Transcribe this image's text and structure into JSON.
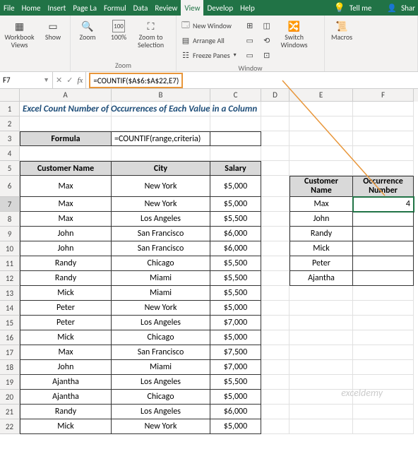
{
  "tabs": {
    "list": [
      "File",
      "Home",
      "Insert",
      "Page La",
      "Formul",
      "Data",
      "Review",
      "View",
      "Develop",
      "Help"
    ],
    "active": "View",
    "tell_me": "Tell me",
    "share": "Shar"
  },
  "ribbon": {
    "g1": {
      "views": "Workbook\nViews",
      "show": "Show"
    },
    "zoom": {
      "zoom": "Zoom",
      "hundred": "100%",
      "sel": "Zoom to\nSelection",
      "label": "Zoom"
    },
    "window": {
      "neww": "New Window",
      "arr": "Arrange All",
      "freeze": "Freeze Panes",
      "switch": "Switch\nWindows",
      "label": "Window"
    },
    "macros": {
      "macros": "Macros"
    }
  },
  "namebox": "F7",
  "formula": "=COUNTIF($A$6:$A$22,E7)",
  "cols": [
    "A",
    "B",
    "C",
    "D",
    "E",
    "F"
  ],
  "title": "Excel Count Number of Occurrences of Each Value in a Column",
  "formula_label": "Formula",
  "formula_example": "=COUNTIF(range,criteria)",
  "main_header": {
    "name": "Customer Name",
    "city": "City",
    "salary": "Salary"
  },
  "side_header": {
    "name": "Customer\nName",
    "occ": "Occurrence\nNumber"
  },
  "side_rows": [
    {
      "name": "Max",
      "occ": "4"
    },
    {
      "name": "John",
      "occ": ""
    },
    {
      "name": "Randy",
      "occ": ""
    },
    {
      "name": "Mick",
      "occ": ""
    },
    {
      "name": "Peter",
      "occ": ""
    },
    {
      "name": "Ajantha",
      "occ": ""
    }
  ],
  "main_rows": [
    {
      "r": 6,
      "name": "Max",
      "city": "New York",
      "salary": "$5,000"
    },
    {
      "r": 7,
      "name": "Max",
      "city": "New York",
      "salary": "$5,000"
    },
    {
      "r": 8,
      "name": "Max",
      "city": "Los Angeles",
      "salary": "$5,500"
    },
    {
      "r": 9,
      "name": "John",
      "city": "San Francisco",
      "salary": "$6,000"
    },
    {
      "r": 10,
      "name": "John",
      "city": "San Francisco",
      "salary": "$6,000"
    },
    {
      "r": 11,
      "name": "Randy",
      "city": "Chicago",
      "salary": "$5,500"
    },
    {
      "r": 12,
      "name": "Randy",
      "city": "Miami",
      "salary": "$5,500"
    },
    {
      "r": 13,
      "name": "Mick",
      "city": "Miami",
      "salary": "$5,500"
    },
    {
      "r": 14,
      "name": "Peter",
      "city": "New York",
      "salary": "$5,000"
    },
    {
      "r": 15,
      "name": "Peter",
      "city": "Los Angeles",
      "salary": "$7,000"
    },
    {
      "r": 16,
      "name": "Mick",
      "city": "Chicago",
      "salary": "$5,000"
    },
    {
      "r": 17,
      "name": "Max",
      "city": "San Francisco",
      "salary": "$7,500"
    },
    {
      "r": 18,
      "name": "John",
      "city": "Miami",
      "salary": "$7,000"
    },
    {
      "r": 19,
      "name": "Ajantha",
      "city": "Los Angeles",
      "salary": "$5,500"
    },
    {
      "r": 20,
      "name": "Ajantha",
      "city": "Chicago",
      "salary": "$5,000"
    },
    {
      "r": 21,
      "name": "Randy",
      "city": "Los Angeles",
      "salary": "$6,000"
    },
    {
      "r": 22,
      "name": "Mick",
      "city": "New York",
      "salary": "$5,000"
    }
  ],
  "watermark": "exceldemy"
}
